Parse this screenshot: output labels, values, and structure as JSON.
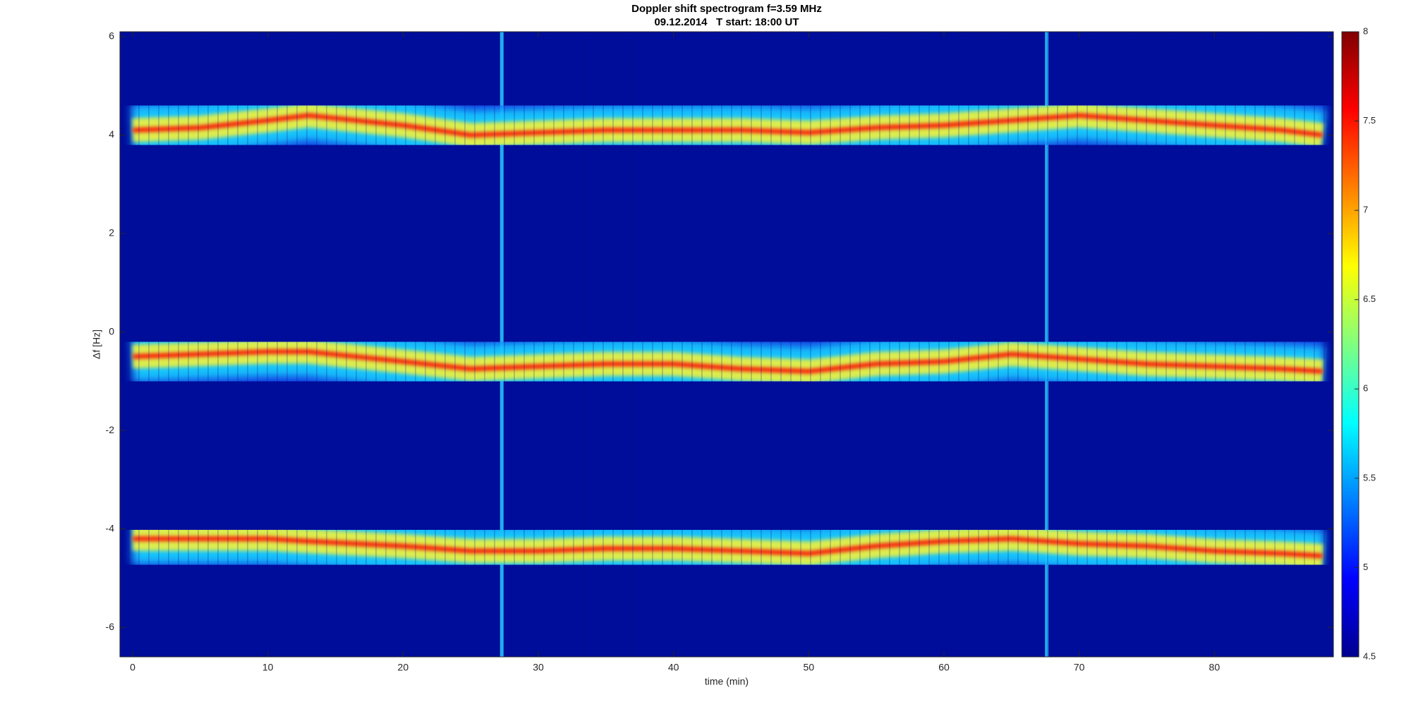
{
  "chart_data": {
    "type": "spectrogram",
    "title": "Doppler shift spectrogram f=3.59 MHz",
    "subtitle": "09.12.2014   T start: 18:00 UT",
    "x_label": "time (min)",
    "y_label": "Δf [Hz]",
    "x": [
      0,
      5,
      10,
      13,
      20,
      25,
      30,
      35,
      40,
      45,
      50,
      55,
      60,
      65,
      70,
      75,
      80,
      85,
      88
    ],
    "series": [
      {
        "color": "#ff0000",
        "values": [
          4.1,
          4.15,
          4.3,
          4.4,
          4.2,
          4.0,
          4.05,
          4.1,
          4.1,
          4.1,
          4.05,
          4.15,
          4.2,
          4.3,
          4.4,
          4.3,
          4.2,
          4.1,
          4.0
        ]
      },
      {
        "color": "#ff0000",
        "values": [
          -0.5,
          -0.45,
          -0.4,
          -0.4,
          -0.6,
          -0.75,
          -0.7,
          -0.65,
          -0.65,
          -0.75,
          -0.8,
          -0.65,
          -0.6,
          -0.45,
          -0.55,
          -0.65,
          -0.7,
          -0.75,
          -0.8
        ]
      },
      {
        "color": "#ff0000",
        "values": [
          -4.2,
          -4.2,
          -4.2,
          -4.25,
          -4.35,
          -4.45,
          -4.45,
          -4.4,
          -4.4,
          -4.45,
          -4.5,
          -4.35,
          -4.25,
          -4.2,
          -4.3,
          -4.35,
          -4.45,
          -4.5,
          -4.55
        ]
      }
    ],
    "vlines": [
      27.3,
      67.6
    ],
    "xlim": [
      -0.94,
      88.8
    ],
    "ylim": [
      -6.6,
      6.1
    ],
    "xticks": [
      0,
      10,
      20,
      30,
      40,
      50,
      60,
      70,
      80
    ],
    "yticks": [
      -6,
      -4,
      -2,
      0,
      2,
      4,
      6
    ],
    "colormap": "jet",
    "clim": [
      4.5,
      8
    ],
    "cticks": [
      4.5,
      5,
      5.5,
      6,
      6.5,
      7,
      7.5,
      8
    ]
  }
}
